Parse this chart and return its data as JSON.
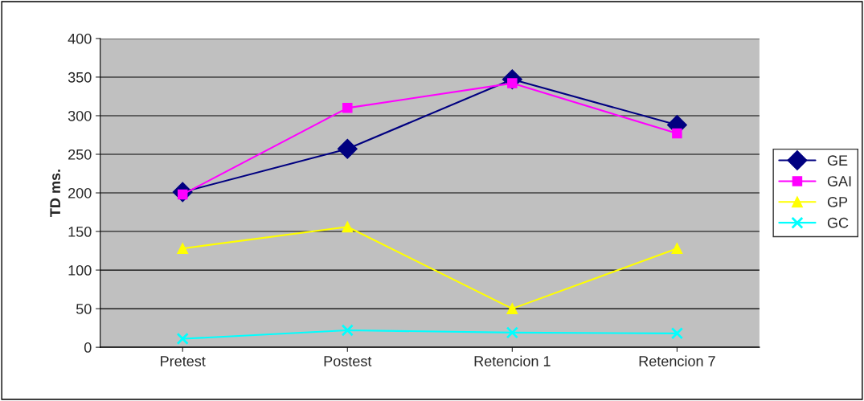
{
  "chart_data": {
    "type": "line",
    "ylabel": "TD ms.",
    "categories": [
      "Pretest",
      "Postest",
      "Retencion 1",
      "Retencion 7"
    ],
    "series": [
      {
        "name": "GE",
        "color": "#000080",
        "marker": "diamond",
        "values": [
          201,
          257,
          347,
          288
        ]
      },
      {
        "name": "GAI",
        "color": "#ff00ff",
        "marker": "square",
        "values": [
          198,
          310,
          342,
          277
        ]
      },
      {
        "name": "GP",
        "color": "#ffff00",
        "marker": "triangle",
        "values": [
          128,
          156,
          50,
          128
        ]
      },
      {
        "name": "GC",
        "color": "#00ffff",
        "marker": "cross",
        "values": [
          11,
          22,
          19,
          18
        ]
      }
    ],
    "ylim": [
      0,
      400
    ],
    "yticks": [
      0,
      50,
      100,
      150,
      200,
      250,
      300,
      350,
      400
    ],
    "grid": "y",
    "legend": "right",
    "line_style": "solid"
  }
}
